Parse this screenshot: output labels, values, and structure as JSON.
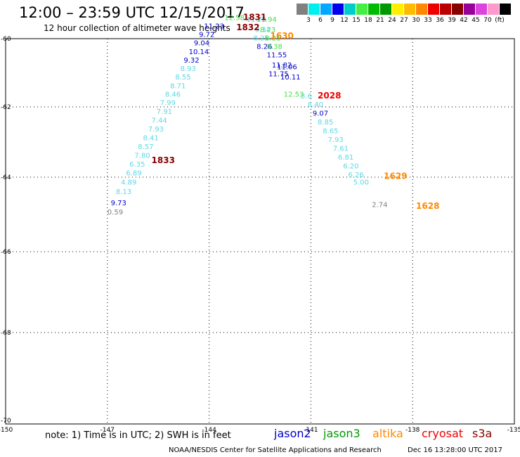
{
  "header": {
    "title": "12:00 – 23:59 UTC 12/15/2017",
    "subtitle": "12 hour collection of altimeter wave heights"
  },
  "colorbar": {
    "colors": [
      "#808080",
      "#00eeee",
      "#00a8ff",
      "#0000ee",
      "#00cccc",
      "#44ee44",
      "#00bb00",
      "#009900",
      "#ffee00",
      "#ffbb00",
      "#ff8800",
      "#ee0000",
      "#bb0000",
      "#880000",
      "#990099",
      "#dd44dd",
      "#ff99cc",
      "#000000"
    ],
    "labels": [
      "3",
      "6",
      "9",
      "12",
      "15",
      "18",
      "21",
      "24",
      "27",
      "30",
      "33",
      "36",
      "39",
      "42",
      "45",
      "70",
      "(ft)"
    ]
  },
  "axes": {
    "lat_labels": [
      "-60",
      "-62",
      "-64",
      "-66",
      "-68",
      "-70"
    ],
    "lon_labels": [
      "-150",
      "-147",
      "-144",
      "-141",
      "-138",
      "-135"
    ]
  },
  "tracks": [
    {
      "color": "#5ad8e6",
      "points": [
        {
          "lon": -147.0,
          "lat": -65.0,
          "v": "0.59",
          "c": "#808080"
        },
        {
          "lon": -146.9,
          "lat": -64.75,
          "v": "9.73",
          "c": "#0000cc"
        },
        {
          "lon": -146.75,
          "lat": -64.45,
          "v": "8.13"
        },
        {
          "lon": -146.6,
          "lat": -64.2,
          "v": "4.89"
        },
        {
          "lon": -146.45,
          "lat": -63.95,
          "v": "6.89"
        },
        {
          "lon": -146.35,
          "lat": -63.7,
          "v": "6.35"
        },
        {
          "lon": -146.2,
          "lat": -63.45,
          "v": "7.80"
        },
        {
          "lon": -146.1,
          "lat": -63.2,
          "v": "8.57"
        },
        {
          "lon": -145.95,
          "lat": -62.95,
          "v": "8.41"
        },
        {
          "lon": -145.8,
          "lat": -62.7,
          "v": "7.93"
        },
        {
          "lon": -145.7,
          "lat": -62.45,
          "v": "7.44"
        },
        {
          "lon": -145.55,
          "lat": -62.2,
          "v": "7.91"
        },
        {
          "lon": -145.45,
          "lat": -61.95,
          "v": "7.99"
        },
        {
          "lon": -145.3,
          "lat": -61.7,
          "v": "8.46"
        },
        {
          "lon": -145.15,
          "lat": -61.45,
          "v": "8.71"
        },
        {
          "lon": -145.0,
          "lat": -61.2,
          "v": "8.55"
        },
        {
          "lon": -144.85,
          "lat": -60.95,
          "v": "8.93"
        },
        {
          "lon": -144.75,
          "lat": -60.7,
          "v": "9.32",
          "c": "#0000cc"
        },
        {
          "lon": -144.6,
          "lat": -60.45,
          "v": "10.14",
          "c": "#0000cc"
        },
        {
          "lon": -144.45,
          "lat": -60.2,
          "v": "9.04",
          "c": "#0000cc"
        },
        {
          "lon": -144.3,
          "lat": -59.95,
          "v": "9.72",
          "c": "#0000cc"
        },
        {
          "lon": -144.15,
          "lat": -59.7,
          "v": "11.23",
          "c": "#0000cc"
        }
      ]
    },
    {
      "color": "#5ad8e6",
      "points": [
        {
          "lon": -141.1,
          "lat": -62.0,
          "v": "8.40"
        },
        {
          "lon": -140.95,
          "lat": -62.25,
          "v": "9.07",
          "c": "#0000cc"
        },
        {
          "lon": -140.8,
          "lat": -62.5,
          "v": "8.85"
        },
        {
          "lon": -140.65,
          "lat": -62.75,
          "v": "8.65"
        },
        {
          "lon": -140.5,
          "lat": -63.0,
          "v": "7.93"
        },
        {
          "lon": -140.35,
          "lat": -63.25,
          "v": "7.61"
        },
        {
          "lon": -140.2,
          "lat": -63.5,
          "v": "6.81"
        },
        {
          "lon": -140.05,
          "lat": -63.75,
          "v": "6.20"
        },
        {
          "lon": -139.9,
          "lat": -64.0,
          "v": "6.26"
        },
        {
          "lon": -139.75,
          "lat": -64.2,
          "v": "5.00"
        }
      ]
    }
  ],
  "peak_labels": [
    {
      "lon": -143.55,
      "lat": -59.45,
      "v": "12.58",
      "c": "#44dd44"
    },
    {
      "lon": -142.9,
      "lat": -59.5,
      "v": "11.75",
      "c": "#5ad8e6"
    },
    {
      "lon": -142.6,
      "lat": -59.5,
      "v": "11.94",
      "c": "#44dd44"
    },
    {
      "lon": -142.65,
      "lat": -59.8,
      "v": "9.34",
      "c": "#5ad8e6"
    },
    {
      "lon": -142.5,
      "lat": -59.8,
      "v": "8.23",
      "c": "#44dd44"
    },
    {
      "lon": -142.7,
      "lat": -60.05,
      "v": "8.25",
      "c": "#5ad8e6"
    },
    {
      "lon": -142.35,
      "lat": -60.05,
      "v": "8.21",
      "c": "#44dd44"
    },
    {
      "lon": -142.6,
      "lat": -60.3,
      "v": "8.26",
      "c": "#0000cc"
    },
    {
      "lon": -142.3,
      "lat": -60.3,
      "v": "8.38",
      "c": "#44dd44"
    },
    {
      "lon": -142.3,
      "lat": -60.55,
      "v": "11.55",
      "c": "#0000cc"
    },
    {
      "lon": -142.15,
      "lat": -60.85,
      "v": "11.82",
      "c": "#0000cc"
    },
    {
      "lon": -142.0,
      "lat": -60.9,
      "v": "11.06",
      "c": "#0000cc"
    },
    {
      "lon": -142.25,
      "lat": -61.1,
      "v": "11.75",
      "c": "#0000cc"
    },
    {
      "lon": -141.9,
      "lat": -61.2,
      "v": "10.11",
      "c": "#0000cc"
    },
    {
      "lon": -141.8,
      "lat": -61.7,
      "v": "12.53",
      "c": "#44dd44"
    },
    {
      "lon": -141.3,
      "lat": -61.75,
      "v": "8.6",
      "c": "#5ad8e6"
    },
    {
      "lon": -139.2,
      "lat": -64.8,
      "v": "2.74",
      "c": "#808080"
    }
  ],
  "time_labels": [
    {
      "lon": -143.0,
      "lat": -59.45,
      "v": "1831",
      "c": "#880000"
    },
    {
      "lon": -143.2,
      "lat": -59.75,
      "v": "1832",
      "c": "#880000"
    },
    {
      "lon": -142.2,
      "lat": -60.0,
      "v": "1630",
      "c": "#ff8800"
    },
    {
      "lon": -140.8,
      "lat": -61.75,
      "v": "2028",
      "c": "#ee0000"
    },
    {
      "lon": -145.7,
      "lat": -63.6,
      "v": "1833",
      "c": "#880000"
    },
    {
      "lon": -138.85,
      "lat": -64.05,
      "v": "1629",
      "c": "#ff8800"
    },
    {
      "lon": -137.9,
      "lat": -64.85,
      "v": "1628",
      "c": "#ff8800"
    }
  ],
  "footer": {
    "note": "note:  1)  Time is in UTC;  2)  SWH is in feet",
    "satellites": [
      {
        "name": "jason2",
        "color": "#0000cc"
      },
      {
        "name": "jason3",
        "color": "#009900"
      },
      {
        "name": "altika",
        "color": "#ff8800"
      },
      {
        "name": "cryosat",
        "color": "#ee0000"
      },
      {
        "name": "s3a",
        "color": "#880000"
      }
    ],
    "credit": "NOAA/NESDIS Center for Satellite Applications and Research",
    "timestamp": "Dec 16 13:28:00 UTC 2017"
  }
}
